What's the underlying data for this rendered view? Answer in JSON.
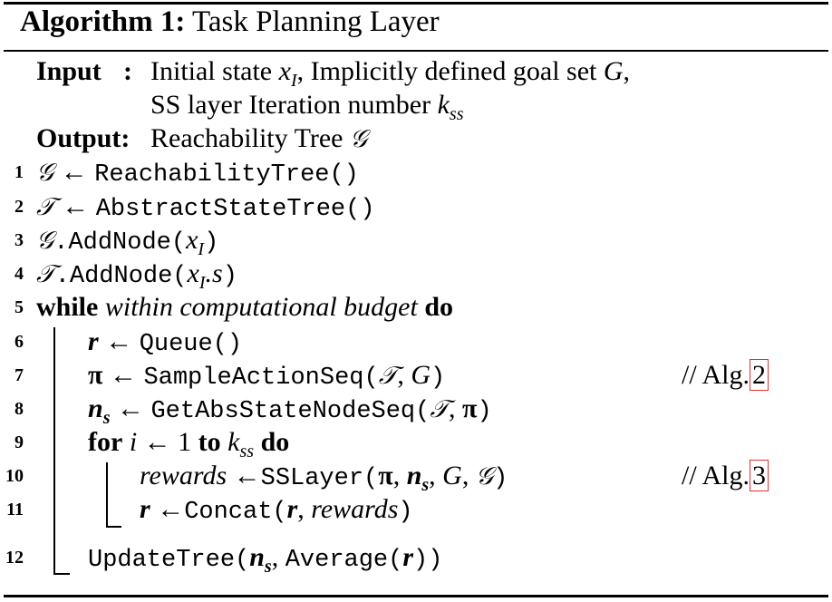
{
  "algorithm": {
    "label": "Algorithm 1:",
    "title": "Task Planning Layer"
  },
  "io": {
    "input_label": "Input",
    "input_sep": ":",
    "input_line1_a": "Initial state",
    "input_line1_b": ", Implicitly defined goal set",
    "input_line2": "SS layer Iteration number",
    "output_label": "Output:",
    "output_text": "Reachability Tree"
  },
  "symbols": {
    "G_cal": "𝒢",
    "T_cal": "𝒯",
    "arrow": "←",
    "x": "x",
    "I": "I",
    "G": "G",
    "k": "k",
    "ss": "ss",
    "r": "r",
    "pi": "π",
    "n": "n",
    "s": "s",
    "i": "i"
  },
  "lines": {
    "l1_num": "1",
    "l1_fn": "ReachabilityTree()",
    "l2_num": "2",
    "l2_fn": "AbstractStateTree()",
    "l3_num": "3",
    "l3_fn": ".AddNode(",
    "l4_num": "4",
    "l4_fn": ".AddNode(",
    "l4_suffix": ".s",
    "l5_num": "5",
    "l5_kw": "while",
    "l5_cond": "within computational budget",
    "l5_do": "do",
    "l6_num": "6",
    "l6_fn": "Queue()",
    "l7_num": "7",
    "l7_fn": "SampleActionSeq(",
    "l8_num": "8",
    "l8_fn": "GetAbsStateNodeSeq(",
    "l9_num": "9",
    "l9_for": "for",
    "l9_to": "to",
    "l9_one": "1",
    "l9_do": "do",
    "l10_num": "10",
    "l10_var": "rewards",
    "l10_fn": "SSLayer(",
    "l11_num": "11",
    "l11_fn": "Concat(",
    "l12_num": "12",
    "l12_fn": "UpdateTree(",
    "l12_avg": "Average(",
    "comment_prefix": "// Alg.",
    "ref2": "2",
    "ref3": "3"
  },
  "colors": {
    "text": "#000000",
    "link_box": "#e03030"
  }
}
